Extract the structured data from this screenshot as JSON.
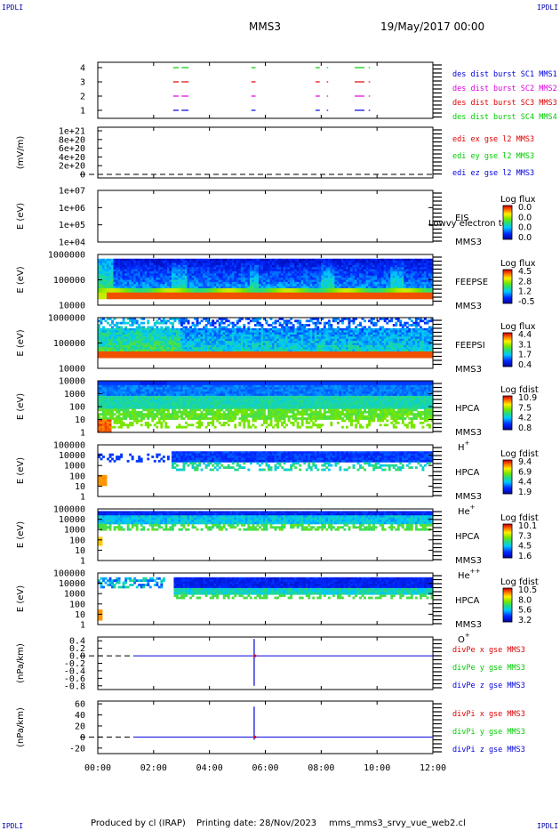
{
  "corners": {
    "tl": "IPDLI",
    "tr": "IPDLI",
    "bl": "IPDLI",
    "br": "IPDLI"
  },
  "header": {
    "spacecraft": "MMS3",
    "date": "19/May/2017 00:00"
  },
  "footer": {
    "produced": "Produced by cl (IRAP)",
    "printing": "Printing date: 28/Nov/2023",
    "file": "mms_mms3_srvy_vue_web2.cl"
  },
  "time_axis": {
    "ticks": [
      "00:00",
      "02:00",
      "04:00",
      "06:00",
      "08:00",
      "10:00",
      "12:00"
    ],
    "range_hours": [
      0,
      12
    ]
  },
  "colors": {
    "blue": "#0000dd",
    "red": "#dd0000",
    "magenta": "#dd00dd",
    "green": "#00cc00",
    "axis": "#000000"
  },
  "chart_data": [
    {
      "type": "timeline",
      "ylabel": "",
      "ytick_labels": [
        "1",
        "2",
        "3",
        "4"
      ],
      "legend": [
        {
          "label": "des dist burst SC1 MMS1",
          "color": "#0000dd"
        },
        {
          "label": "des dist burst SC2 MMS2",
          "color": "#dd00dd"
        },
        {
          "label": "des dist burst SC3 MMS3",
          "color": "#dd0000"
        },
        {
          "label": "des dist burst SC4 MMS4",
          "color": "#00cc00"
        }
      ],
      "rows": [
        {
          "level": 4,
          "color": "#00cc00",
          "intervals": [
            [
              2.7,
              2.9
            ],
            [
              3.0,
              3.25
            ],
            [
              5.5,
              5.65
            ],
            [
              7.8,
              7.95
            ],
            [
              8.2,
              8.25
            ],
            [
              9.2,
              9.55
            ],
            [
              9.7,
              9.75
            ]
          ]
        },
        {
          "level": 3,
          "color": "#dd0000",
          "intervals": [
            [
              2.7,
              2.9
            ],
            [
              3.0,
              3.25
            ],
            [
              5.5,
              5.65
            ],
            [
              7.8,
              7.95
            ],
            [
              8.2,
              8.25
            ],
            [
              9.2,
              9.55
            ],
            [
              9.7,
              9.75
            ]
          ]
        },
        {
          "level": 2,
          "color": "#dd00dd",
          "intervals": [
            [
              2.7,
              2.9
            ],
            [
              3.0,
              3.25
            ],
            [
              5.5,
              5.65
            ],
            [
              7.8,
              7.95
            ],
            [
              8.2,
              8.25
            ],
            [
              9.2,
              9.55
            ],
            [
              9.7,
              9.75
            ]
          ]
        },
        {
          "level": 1,
          "color": "#0000dd",
          "intervals": [
            [
              2.7,
              2.9
            ],
            [
              3.0,
              3.25
            ],
            [
              5.5,
              5.65
            ],
            [
              7.8,
              7.95
            ],
            [
              8.2,
              8.25
            ],
            [
              9.2,
              9.55
            ],
            [
              9.7,
              9.75
            ]
          ]
        }
      ]
    },
    {
      "type": "line",
      "ylabel": "(mV/m)",
      "ytick_labels": [
        "0",
        "2e+20",
        "4e+20",
        "6e+20",
        "8e+20",
        "1e+21"
      ],
      "legend": [
        {
          "label": "edi ex gse l2 MMS3",
          "color": "#dd0000"
        },
        {
          "label": "edi ey gse l2 MMS3",
          "color": "#00cc00"
        },
        {
          "label": "edi ez gse l2 MMS3",
          "color": "#0000dd"
        }
      ],
      "series": [
        {
          "style": "dashed",
          "value": 0
        }
      ]
    },
    {
      "type": "heatmap",
      "ylabel": "E (eV)",
      "ytick_labels": [
        "1e+07",
        "1e+06",
        "1e+05",
        "1e+04"
      ],
      "instrument": "EIS",
      "instrument2": "MMS3",
      "extra_label": "Lowvy electron to",
      "colorbar": {
        "title": "Log flux",
        "ticks": [
          "0.0",
          "0.0",
          "0.0",
          "0.0"
        ]
      }
    },
    {
      "type": "heatmap",
      "ylabel": "E (eV)",
      "ytick_labels": [
        "1000000",
        "100000",
        "10000"
      ],
      "instrument": "FEEPSE",
      "instrument2": "MMS3",
      "colorbar": {
        "title": "Log flux",
        "ticks": [
          "4.5",
          "2.8",
          "1.2",
          "-0.5"
        ]
      }
    },
    {
      "type": "heatmap",
      "ylabel": "E (eV)",
      "ytick_labels": [
        "1000000",
        "100000",
        "10000"
      ],
      "instrument": "FEEPSI",
      "instrument2": "MMS3",
      "colorbar": {
        "title": "Log flux",
        "ticks": [
          "4.4",
          "3.1",
          "1.7",
          "0.4"
        ]
      }
    },
    {
      "type": "heatmap",
      "ylabel": "E (eV)",
      "ytick_labels": [
        "10000",
        "1000",
        "100",
        "10",
        "1"
      ],
      "instrument": "HPCA",
      "instrument2": "MMS3",
      "ion": "H",
      "ion_sup": "+",
      "colorbar": {
        "title": "Log fdist",
        "ticks": [
          "10.9",
          "7.5",
          "4.2",
          "0.8"
        ]
      }
    },
    {
      "type": "heatmap",
      "ylabel": "E (eV)",
      "ytick_labels": [
        "100000",
        "10000",
        "1000",
        "100",
        "10",
        "1"
      ],
      "instrument": "HPCA",
      "instrument2": "MMS3",
      "ion": "He",
      "ion_sup": "+",
      "colorbar": {
        "title": "Log fdist",
        "ticks": [
          "9.4",
          "6.9",
          "4.4",
          "1.9"
        ]
      }
    },
    {
      "type": "heatmap",
      "ylabel": "E (eV)",
      "ytick_labels": [
        "100000",
        "10000",
        "1000",
        "100",
        "10",
        "1"
      ],
      "instrument": "HPCA",
      "instrument2": "MMS3",
      "ion": "He",
      "ion_sup": "++",
      "colorbar": {
        "title": "Log fdist",
        "ticks": [
          "10.1",
          "7.3",
          "4.5",
          "1.6"
        ]
      }
    },
    {
      "type": "heatmap",
      "ylabel": "E (eV)",
      "ytick_labels": [
        "100000",
        "10000",
        "1000",
        "100",
        "10",
        "1"
      ],
      "instrument": "HPCA",
      "instrument2": "MMS3",
      "ion": "O",
      "ion_sup": "+",
      "colorbar": {
        "title": "Log fdist",
        "ticks": [
          "10.5",
          "8.0",
          "5.6",
          "3.2"
        ]
      }
    },
    {
      "type": "line",
      "ylabel": "(nPa/km)",
      "ytick_labels": [
        "0.4",
        "0.2",
        "0.0",
        "-0.2",
        "-0.4",
        "-0.6",
        "-0.8"
      ],
      "ylim": [
        -0.9,
        0.5
      ],
      "legend": [
        {
          "label": "divPe x gse MMS3",
          "color": "#dd0000"
        },
        {
          "label": "divPe y gse MMS3",
          "color": "#00cc00"
        },
        {
          "label": "divPe z gse MMS3",
          "color": "#0000dd"
        }
      ],
      "series": [
        {
          "name": "divPe z gse MMS3",
          "color": "#0000dd",
          "x_start": 1.3,
          "baseline": 0.0,
          "spike_x": 5.6,
          "spike_min": -0.8,
          "spike_max": 0.45
        }
      ]
    },
    {
      "type": "line",
      "ylabel": "(nPa/km)",
      "ytick_labels": [
        "60",
        "40",
        "20",
        "0",
        "-20"
      ],
      "ylim": [
        -30,
        65
      ],
      "legend": [
        {
          "label": "divPi x gse MMS3",
          "color": "#dd0000"
        },
        {
          "label": "divPi y gse MMS3",
          "color": "#00cc00"
        },
        {
          "label": "divPi z gse MMS3",
          "color": "#0000dd"
        }
      ],
      "series": [
        {
          "name": "divPi z gse MMS3",
          "color": "#0000dd",
          "x_start": 1.3,
          "baseline": 0.0,
          "spike_x": 5.6,
          "spike_min": -5,
          "spike_max": 55
        }
      ]
    }
  ]
}
